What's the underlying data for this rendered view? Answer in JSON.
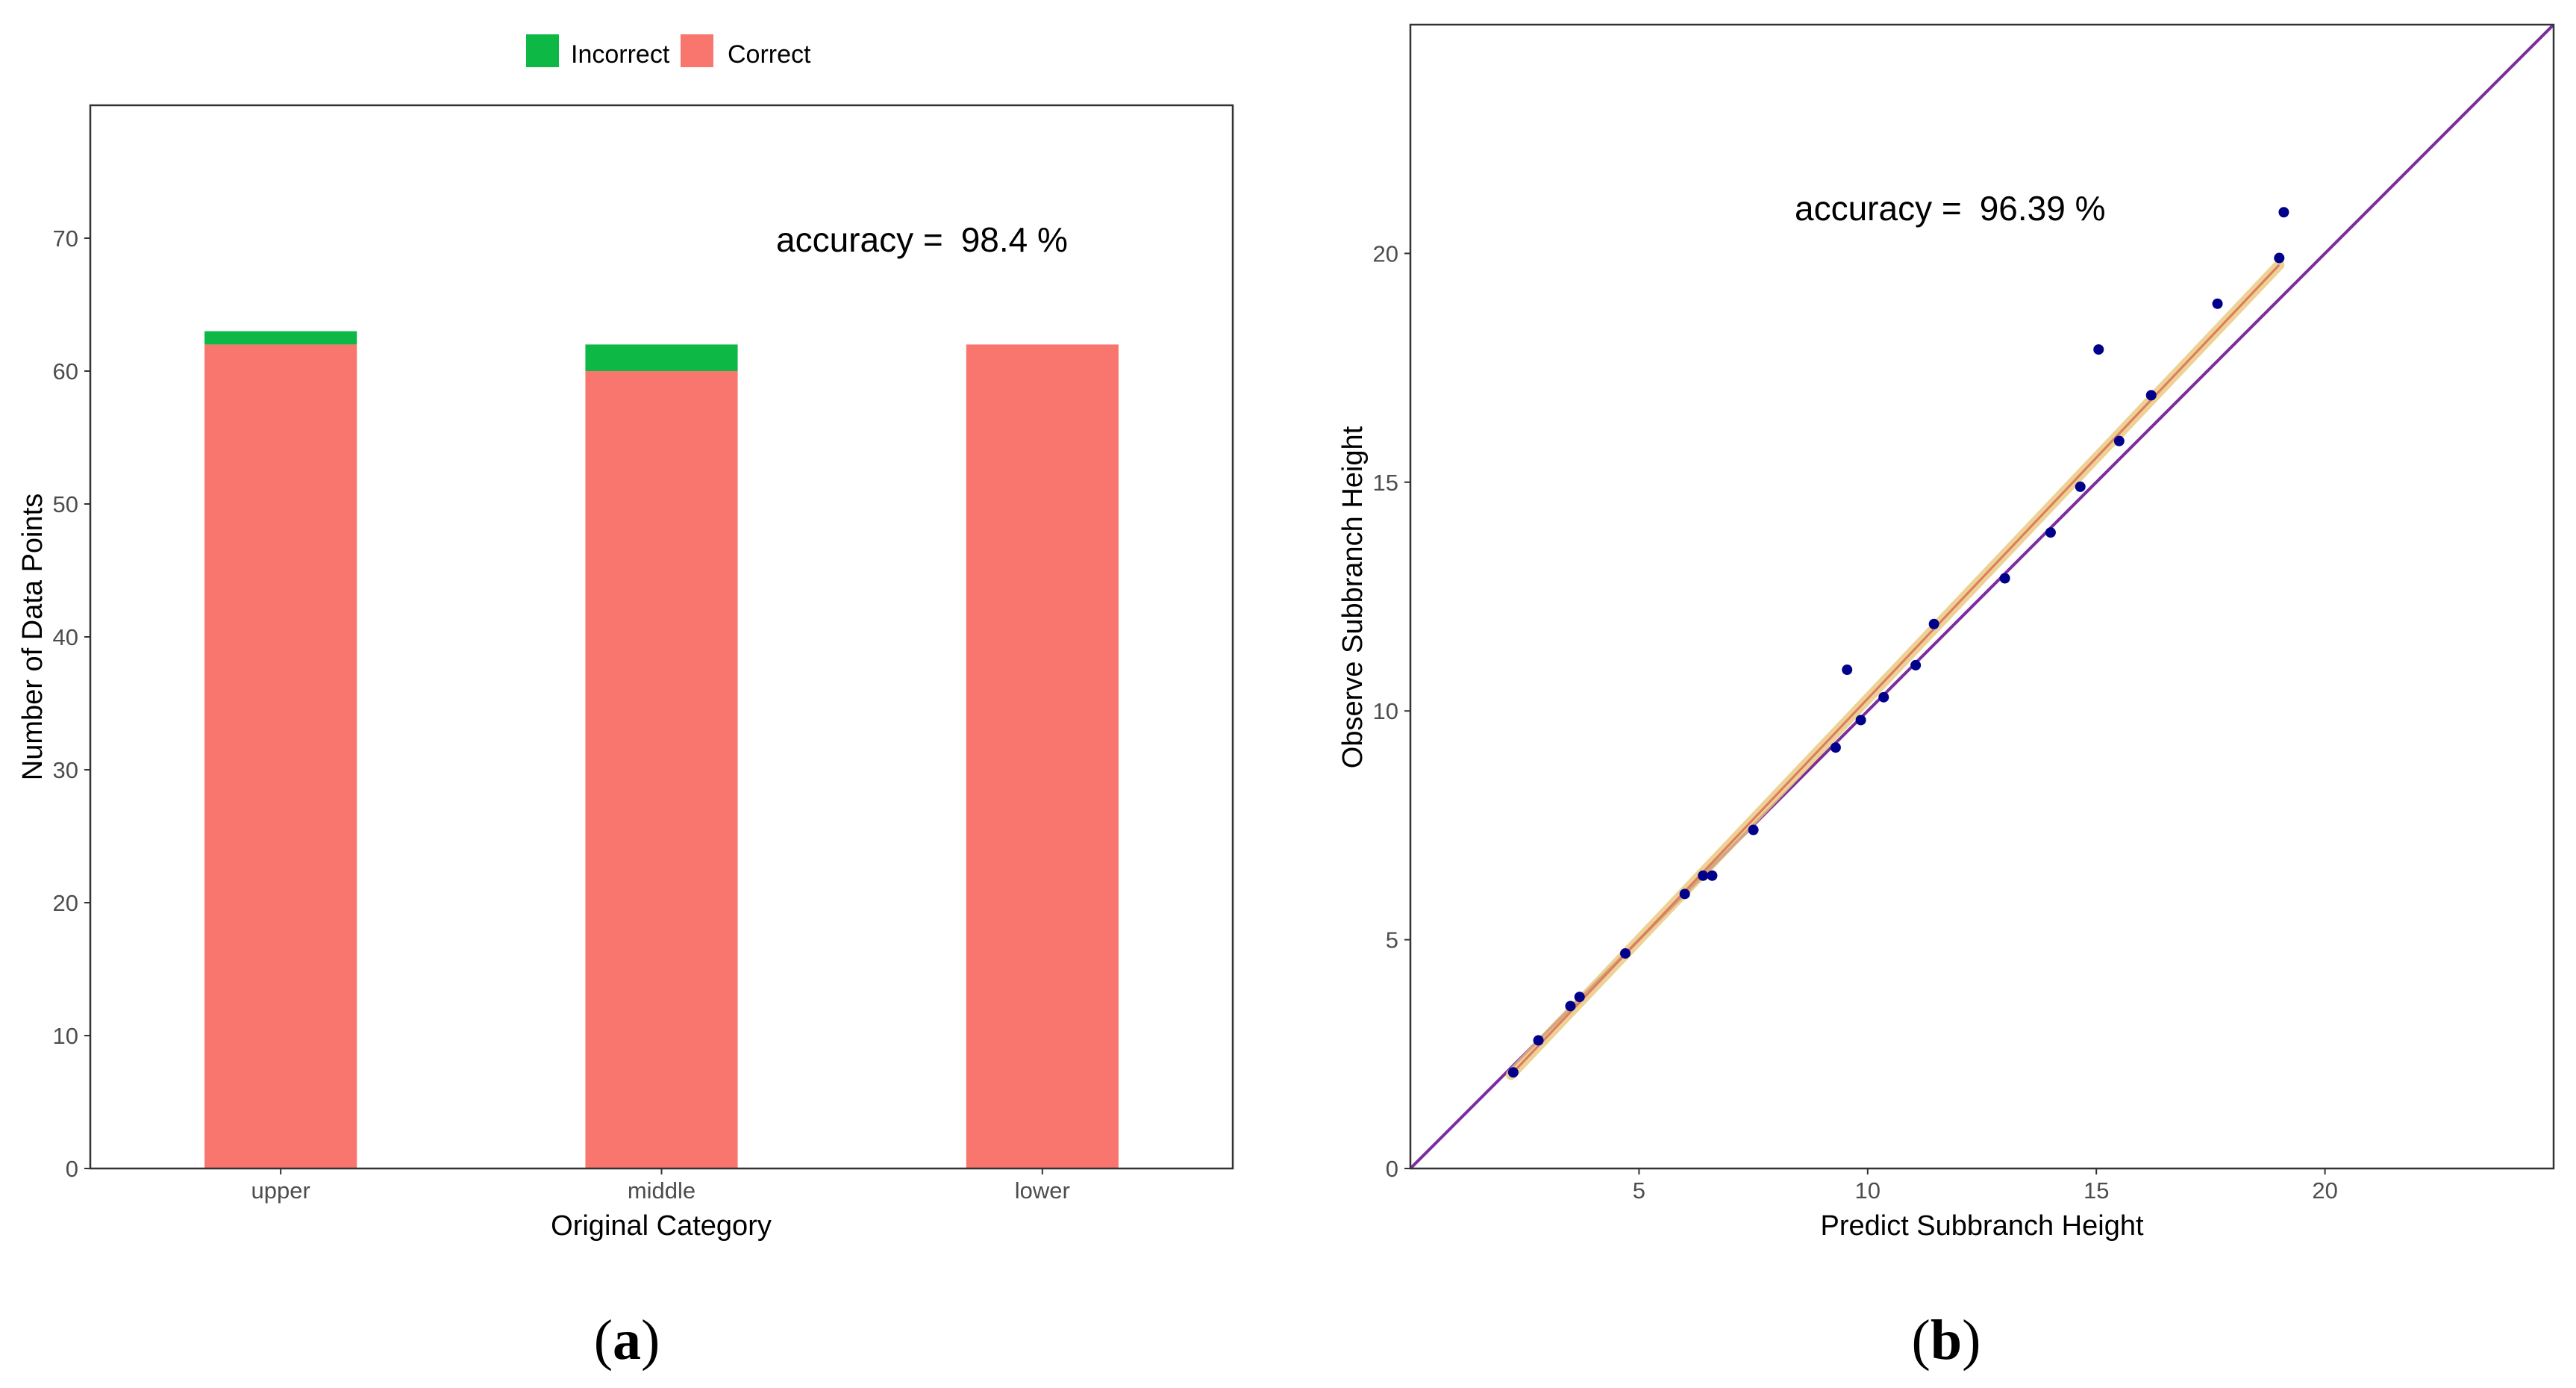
{
  "chart_data": [
    {
      "type": "bar",
      "stacked": true,
      "panel_label": "a",
      "title": "",
      "xlabel": "Original Category",
      "ylabel": "Number of Data Points",
      "categories": [
        "upper",
        "middle",
        "lower"
      ],
      "series": [
        {
          "name": "Correct",
          "color": "#F8766D",
          "values": [
            62,
            60,
            62
          ]
        },
        {
          "name": "Incorrect",
          "color": "#0DB844",
          "values": [
            1,
            2,
            0
          ]
        }
      ],
      "ylim": [
        0,
        80
      ],
      "yticks": [
        0,
        10,
        20,
        30,
        40,
        50,
        60,
        70
      ],
      "legend": {
        "position": "top",
        "entries": [
          "Incorrect",
          "Correct"
        ]
      },
      "annotation": {
        "label": "accuracy =",
        "value": "98.4 %"
      },
      "grid": false
    },
    {
      "type": "scatter",
      "panel_label": "b",
      "title": "",
      "xlabel": "Predict Subbranch Height",
      "ylabel": "Observe Subbranch Height",
      "xlim": [
        0,
        25
      ],
      "ylim": [
        0,
        25
      ],
      "xticks": [
        5,
        10,
        15,
        20
      ],
      "yticks": [
        0,
        5,
        10,
        15,
        20
      ],
      "annotation": {
        "label": "accuracy =",
        "value": "96.39 %"
      },
      "point_color": "#00008B",
      "points": [
        {
          "x": 2.25,
          "y": 2.1
        },
        {
          "x": 2.8,
          "y": 2.8
        },
        {
          "x": 3.5,
          "y": 3.55
        },
        {
          "x": 3.7,
          "y": 3.75
        },
        {
          "x": 4.7,
          "y": 4.7
        },
        {
          "x": 6.0,
          "y": 6.0
        },
        {
          "x": 6.4,
          "y": 6.4
        },
        {
          "x": 6.6,
          "y": 6.4
        },
        {
          "x": 7.5,
          "y": 7.4
        },
        {
          "x": 9.3,
          "y": 9.2
        },
        {
          "x": 9.55,
          "y": 10.9
        },
        {
          "x": 9.85,
          "y": 9.8
        },
        {
          "x": 10.35,
          "y": 10.3
        },
        {
          "x": 11.05,
          "y": 11.0
        },
        {
          "x": 11.45,
          "y": 11.9
        },
        {
          "x": 13.0,
          "y": 12.9
        },
        {
          "x": 14.0,
          "y": 13.9
        },
        {
          "x": 14.65,
          "y": 14.9
        },
        {
          "x": 15.05,
          "y": 17.9
        },
        {
          "x": 15.5,
          "y": 15.9
        },
        {
          "x": 16.2,
          "y": 16.9
        },
        {
          "x": 17.65,
          "y": 18.9
        },
        {
          "x": 19.0,
          "y": 19.9
        },
        {
          "x": 19.1,
          "y": 20.9
        }
      ],
      "identity_line": {
        "color": "#7B2D9E",
        "from": [
          0,
          0
        ],
        "to": [
          25,
          25
        ]
      },
      "fit_line": {
        "color": "#E07A5F",
        "band_color": "#E8C77A",
        "from": [
          2.2,
          2.05
        ],
        "to": [
          19.0,
          19.75
        ]
      },
      "grid": false
    }
  ]
}
